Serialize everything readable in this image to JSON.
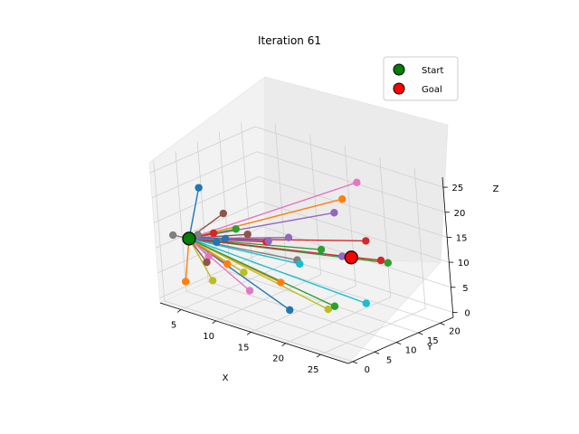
{
  "chart_data": {
    "type": "scatter",
    "projection": "3d",
    "title": "Iteration 61",
    "xlabel": "X",
    "ylabel": "Y",
    "zlabel": "Z",
    "xlim": [
      2,
      29
    ],
    "ylim": [
      -1,
      23
    ],
    "zlim": [
      -1,
      27
    ],
    "xticks": [
      "5",
      "10",
      "15",
      "20",
      "25"
    ],
    "yticks": [
      "0",
      "5",
      "10",
      "15",
      "20"
    ],
    "zticks": [
      "0",
      "5",
      "10",
      "15",
      "20",
      "25"
    ],
    "xtick_values": [
      5,
      10,
      15,
      20,
      25
    ],
    "ytick_values": [
      0,
      5,
      10,
      15,
      20
    ],
    "ztick_values": [
      0,
      5,
      10,
      15,
      20,
      25
    ],
    "grid": true,
    "legend_position": "top-right",
    "legend": [
      {
        "label": "Start",
        "color": "#008000"
      },
      {
        "label": "Goal",
        "color": "#ff0000"
      }
    ],
    "start": {
      "x": 3,
      "y": 5,
      "z": 10
    },
    "goal": {
      "x": 20,
      "y": 15,
      "z": 10
    },
    "palette": [
      "#1f77b4",
      "#ff7f0e",
      "#2ca02c",
      "#d62728",
      "#9467bd",
      "#8c564b",
      "#e377c2",
      "#7f7f7f",
      "#bcbd22",
      "#17becf"
    ],
    "tree_edges": [
      {
        "from": [
          3,
          5,
          10
        ],
        "to": [
          3,
          8,
          19
        ]
      },
      {
        "from": [
          3,
          5,
          10
        ],
        "to": [
          18,
          17,
          20
        ]
      },
      {
        "from": [
          3,
          5,
          10
        ],
        "to": [
          26,
          14,
          12
        ]
      },
      {
        "from": [
          3,
          5,
          10
        ],
        "to": [
          21,
          17,
          13
        ]
      },
      {
        "from": [
          3,
          5,
          10
        ],
        "to": [
          16,
          18,
          16
        ]
      },
      {
        "from": [
          3,
          5,
          10
        ],
        "to": [
          5,
          10,
          14
        ]
      },
      {
        "from": [
          3,
          5,
          10
        ],
        "to": [
          19,
          19,
          23
        ]
      },
      {
        "from": [
          3,
          5,
          10
        ],
        "to": [
          3,
          7,
          10
        ]
      },
      {
        "from": [
          3,
          5,
          10
        ],
        "to": [
          22,
          6,
          4
        ]
      },
      {
        "from": [
          3,
          5,
          10
        ],
        "to": [
          25,
          10,
          5
        ]
      },
      {
        "from": [
          3,
          5,
          10
        ],
        "to": [
          17,
          5,
          2
        ]
      },
      {
        "from": [
          3,
          5,
          10
        ],
        "to": [
          14,
          8,
          5
        ]
      },
      {
        "from": [
          3,
          5,
          10
        ],
        "to": [
          8,
          8,
          13
        ]
      },
      {
        "from": [
          3,
          5,
          10
        ],
        "to": [
          11,
          10,
          11
        ]
      },
      {
        "from": [
          3,
          5,
          10
        ],
        "to": [
          20,
          13,
          11
        ]
      },
      {
        "from": [
          3,
          5,
          10
        ],
        "to": [
          9,
          9,
          12
        ]
      },
      {
        "from": [
          3,
          5,
          10
        ],
        "to": [
          7,
          3,
          9
        ]
      },
      {
        "from": [
          3,
          5,
          10
        ],
        "to": [
          16,
          9,
          10
        ]
      },
      {
        "from": [
          3,
          5,
          10
        ],
        "to": [
          10,
          6,
          6
        ]
      },
      {
        "from": [
          3,
          5,
          10
        ],
        "to": [
          20,
          15,
          10
        ]
      },
      {
        "from": [
          3,
          5,
          10
        ],
        "to": [
          5,
          8,
          9
        ]
      },
      {
        "from": [
          3,
          5,
          10
        ],
        "to": [
          4,
          2,
          3
        ]
      },
      {
        "from": [
          3,
          5,
          10
        ],
        "to": [
          17,
          13,
          11
        ]
      },
      {
        "from": [
          3,
          5,
          10
        ],
        "to": [
          23,
          17,
          10
        ]
      },
      {
        "from": [
          3,
          5,
          10
        ],
        "to": [
          13,
          12,
          12
        ]
      },
      {
        "from": [
          3,
          5,
          10
        ],
        "to": [
          6,
          4,
          7
        ]
      },
      {
        "from": [
          3,
          5,
          10
        ],
        "to": [
          12,
          4,
          4
        ]
      },
      {
        "from": [
          3,
          5,
          10
        ],
        "to": [
          2,
          3,
          11
        ]
      },
      {
        "from": [
          3,
          5,
          10
        ],
        "to": [
          8,
          2,
          5
        ]
      },
      {
        "from": [
          3,
          5,
          10
        ],
        "to": [
          15,
          11,
          8
        ]
      },
      {
        "from": [
          3,
          5,
          10
        ],
        "to": [
          7,
          7,
          11
        ]
      },
      {
        "from": [
          3,
          5,
          10
        ],
        "to": [
          9,
          4,
          8
        ]
      },
      {
        "from": [
          3,
          5,
          10
        ],
        "to": [
          21,
          9,
          3
        ]
      },
      {
        "from": [
          3,
          5,
          10
        ],
        "to": [
          4,
          9,
          10
        ]
      },
      {
        "from": [
          3,
          5,
          10
        ],
        "to": [
          12,
          9,
          12
        ]
      }
    ]
  }
}
